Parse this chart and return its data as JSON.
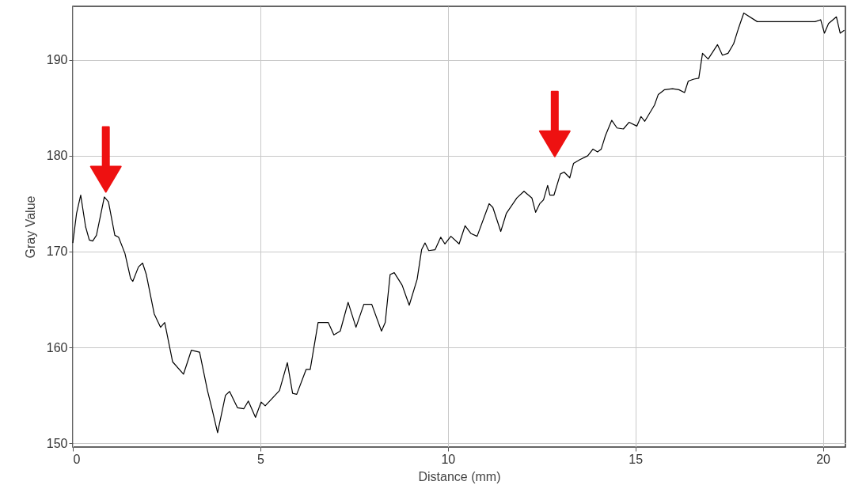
{
  "chart_data": {
    "type": "line",
    "xlabel": "Distance (mm)",
    "ylabel": "Gray Value",
    "xlim": [
      0,
      20.6
    ],
    "ylim": [
      149.6,
      195.6
    ],
    "xticks": [
      0,
      5,
      10,
      15,
      20
    ],
    "yticks": [
      150,
      160,
      170,
      180,
      190
    ],
    "grid": true,
    "series": [
      {
        "color": "#000000",
        "x": [
          0,
          0.1,
          0.21,
          0.34,
          0.44,
          0.53,
          0.63,
          0.84,
          0.95,
          1.12,
          1.22,
          1.39,
          1.54,
          1.6,
          1.75,
          1.86,
          1.96,
          2.17,
          2.34,
          2.45,
          2.66,
          2.95,
          3.16,
          3.38,
          3.59,
          3.71,
          3.86,
          4.07,
          4.18,
          4.39,
          4.56,
          4.68,
          4.87,
          5.02,
          5.13,
          5.51,
          5.72,
          5.86,
          5.97,
          6.22,
          6.33,
          6.54,
          6.81,
          6.96,
          7.13,
          7.34,
          7.55,
          7.76,
          7.97,
          8.23,
          8.33,
          8.46,
          8.57,
          8.78,
          8.97,
          9.18,
          9.3,
          9.39,
          9.49,
          9.66,
          9.81,
          9.92,
          10.08,
          10.3,
          10.46,
          10.61,
          10.78,
          11.1,
          11.2,
          11.41,
          11.56,
          11.84,
          12.03,
          12.24,
          12.34,
          12.45,
          12.55,
          12.66,
          12.72,
          12.83,
          13.0,
          13.1,
          13.25,
          13.35,
          13.52,
          13.73,
          13.87,
          13.99,
          14.09,
          14.2,
          14.37,
          14.51,
          14.68,
          14.83,
          15.04,
          15.15,
          15.25,
          15.51,
          15.61,
          15.78,
          15.99,
          16.16,
          16.31,
          16.41,
          16.56,
          16.69,
          16.79,
          16.94,
          17.19,
          17.32,
          17.47,
          17.62,
          17.74,
          17.89,
          18.25,
          19.79,
          19.94,
          20.04,
          20.15,
          20.36,
          20.46,
          20.57
        ],
        "values": [
          170.9,
          174.0,
          175.9,
          172.6,
          171.2,
          171.1,
          171.7,
          175.7,
          175.2,
          171.7,
          171.5,
          169.8,
          167.2,
          166.9,
          168.4,
          168.8,
          167.6,
          163.5,
          162.1,
          162.6,
          158.5,
          157.2,
          159.7,
          159.5,
          155.5,
          153.6,
          151.1,
          155.0,
          155.4,
          153.7,
          153.6,
          154.4,
          152.7,
          154.3,
          153.9,
          155.5,
          158.4,
          155.2,
          155.1,
          157.7,
          157.7,
          162.6,
          162.6,
          161.3,
          161.7,
          164.7,
          162.1,
          164.5,
          164.5,
          161.7,
          162.6,
          167.6,
          167.8,
          166.5,
          164.4,
          167.1,
          170.2,
          170.9,
          170.1,
          170.2,
          171.5,
          170.8,
          171.6,
          170.8,
          172.7,
          171.9,
          171.6,
          175.0,
          174.6,
          172.1,
          174.0,
          175.6,
          176.3,
          175.6,
          174.1,
          175.0,
          175.4,
          176.9,
          175.9,
          175.9,
          178.1,
          178.3,
          177.7,
          179.2,
          179.6,
          180.0,
          180.7,
          180.4,
          180.7,
          182.1,
          183.7,
          182.9,
          182.8,
          183.5,
          183.1,
          184.1,
          183.6,
          185.3,
          186.4,
          186.9,
          187.0,
          186.9,
          186.6,
          187.8,
          188.0,
          188.1,
          190.7,
          190.1,
          191.6,
          190.5,
          190.7,
          191.7,
          193.2,
          194.9,
          194.0,
          194.0,
          194.2,
          192.8,
          193.8,
          194.5,
          192.8,
          193.1
        ]
      }
    ]
  }
}
